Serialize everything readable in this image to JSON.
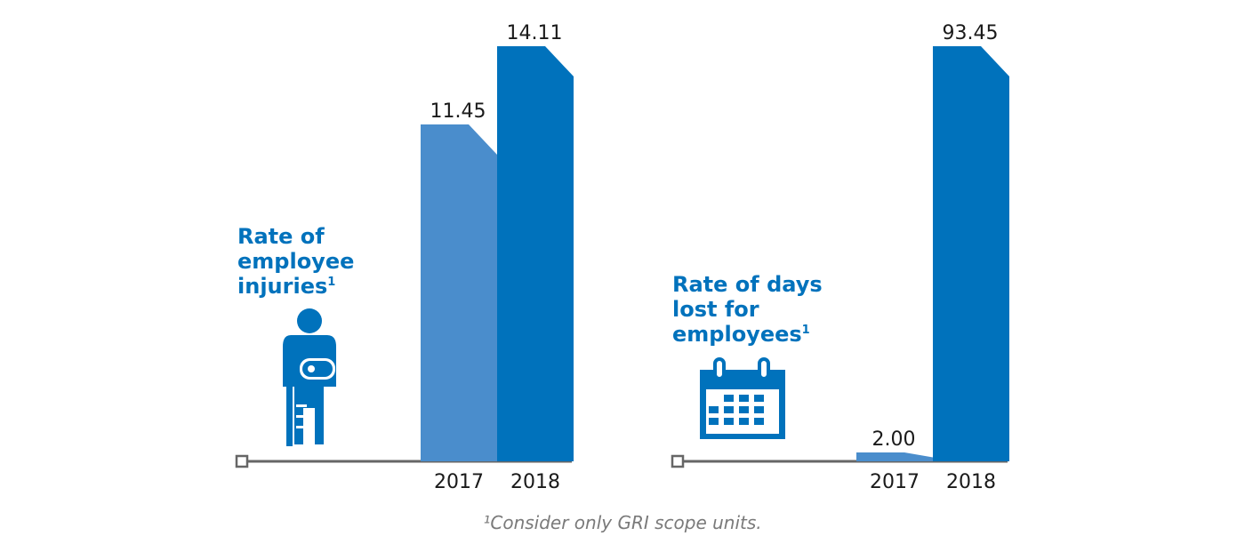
{
  "chart_data": [
    {
      "type": "bar",
      "title_lines": [
        "Rate of",
        "employee",
        "injuries"
      ],
      "title_sup": "1",
      "categories": [
        "2017",
        "2018"
      ],
      "values": [
        11.45,
        14.11
      ],
      "value_labels": [
        "11.45",
        "14.11"
      ],
      "ylim": [
        0,
        14.11
      ],
      "grid": false,
      "legend": "none",
      "icon": "injured-person-crutch-icon",
      "colors": [
        "#4a8dcc",
        "#0072bc"
      ]
    },
    {
      "type": "bar",
      "title_lines": [
        "Rate of days",
        "lost for",
        "employees"
      ],
      "title_sup": "1",
      "categories": [
        "2017",
        "2018"
      ],
      "values": [
        2.0,
        93.45
      ],
      "value_labels": [
        "2.00",
        "93.45"
      ],
      "ylim": [
        0,
        93.45
      ],
      "grid": false,
      "legend": "none",
      "icon": "calendar-icon",
      "colors": [
        "#4a8dcc",
        "#0072bc"
      ]
    }
  ],
  "colors": {
    "title": "#0072bc",
    "axis": "#666666",
    "footnote": "#7a7a7a"
  },
  "footnote": "¹Consider only GRI scope units."
}
